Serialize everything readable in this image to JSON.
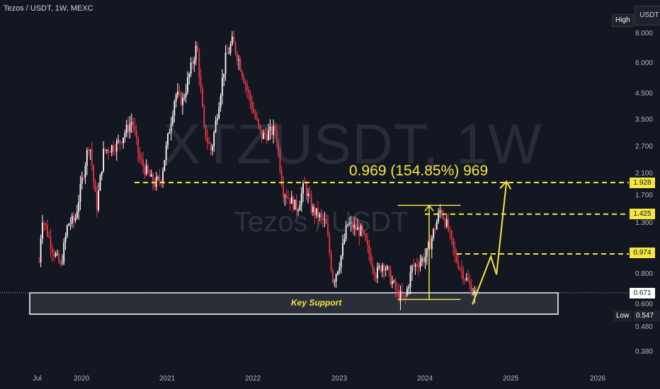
{
  "header": {
    "symbol": "Tezos / USDT, 1W, MEXC"
  },
  "price_scale": {
    "currency": "USDT",
    "high_tag": "High",
    "low_tag": "Low",
    "low_value": "0.547"
  },
  "watermark": {
    "ticker": "XTZUSDT, 1W",
    "name": "Tezos / USDT"
  },
  "annotation": {
    "move": "0.969 (154.85%) 969",
    "zone_label": "Key Support"
  },
  "levels": {
    "l1": "1.928",
    "l2": "1.425",
    "l3": "0.974",
    "current": "0.671"
  },
  "colors": {
    "up": "#ffffff",
    "down": "#f23645",
    "accent": "#f5e642",
    "background": "#131722"
  },
  "chart_data": {
    "type": "candlestick",
    "title": "Tezos / USDT, 1W, MEXC",
    "y_scale": "log",
    "y_ticks": [
      8.0,
      6.0,
      4.5,
      3.5,
      2.7,
      2.1,
      1.7,
      1.3,
      0.8,
      0.6,
      0.48,
      0.38
    ],
    "y_tick_labels": [
      "8.000",
      "6.000",
      "4.500",
      "3.500",
      "2.700",
      "2.100",
      "1.700",
      "1.300",
      "0.800",
      "0.600",
      "0.480",
      "0.380"
    ],
    "x_tick_labels": [
      "Jul",
      "2020",
      "2021",
      "2022",
      "2023",
      "2024",
      "2025",
      "2026"
    ],
    "ylim": [
      0.35,
      10.0
    ],
    "horizontal_levels": [
      1.928,
      1.425,
      0.974
    ],
    "current_price": 0.671,
    "support_zone": [
      0.547,
      0.671
    ],
    "price_path": [
      [
        "2019-07",
        0.9
      ],
      [
        "2019-07",
        1.4
      ],
      [
        "2019-09",
        1.0
      ],
      [
        "2019-10",
        0.86
      ],
      [
        "2019-11",
        1.3
      ],
      [
        "2019-12",
        1.35
      ],
      [
        "2020-02",
        2.9
      ],
      [
        "2020-03",
        1.5
      ],
      [
        "2020-04",
        2.6
      ],
      [
        "2020-06",
        2.8
      ],
      [
        "2020-08",
        3.5
      ],
      [
        "2020-09",
        2.4
      ],
      [
        "2020-11",
        1.9
      ],
      [
        "2020-12",
        2.0
      ],
      [
        "2021-02",
        4.5
      ],
      [
        "2021-03",
        4.2
      ],
      [
        "2021-05",
        7.2
      ],
      [
        "2021-06",
        3.2
      ],
      [
        "2021-07",
        2.6
      ],
      [
        "2021-09",
        6.3
      ],
      [
        "2021-10",
        7.5
      ],
      [
        "2021-11",
        6.0
      ],
      [
        "2022-01",
        3.7
      ],
      [
        "2022-02",
        3.0
      ],
      [
        "2022-04",
        3.2
      ],
      [
        "2022-05",
        1.8
      ],
      [
        "2022-07",
        1.5
      ],
      [
        "2022-08",
        1.9
      ],
      [
        "2022-09",
        1.5
      ],
      [
        "2022-11",
        1.3
      ],
      [
        "2022-12",
        0.75
      ],
      [
        "2023-01",
        0.92
      ],
      [
        "2023-02",
        1.3
      ],
      [
        "2023-04",
        1.2
      ],
      [
        "2023-06",
        0.8
      ],
      [
        "2023-07",
        0.9
      ],
      [
        "2023-09",
        0.66
      ],
      [
        "2023-10",
        0.63
      ],
      [
        "2023-11",
        0.85
      ],
      [
        "2024-01",
        0.96
      ],
      [
        "2024-03",
        1.5
      ],
      [
        "2024-04",
        1.25
      ],
      [
        "2024-05",
        0.95
      ],
      [
        "2024-07",
        0.72
      ],
      [
        "2024-08",
        0.65
      ]
    ],
    "projection": [
      [
        "2024-09",
        0.6
      ],
      [
        "2024-10",
        0.95
      ],
      [
        "2024-10",
        0.8
      ],
      [
        "2024-11",
        1.95
      ]
    ],
    "measure": {
      "from": 0.63,
      "to": 1.55,
      "from_date": "2023-10",
      "to_date": "2024-04"
    }
  }
}
